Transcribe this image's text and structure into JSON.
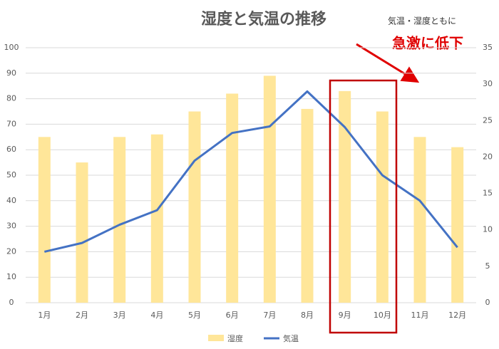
{
  "chart_data": {
    "type": "combo",
    "title": "湿度と気温の推移",
    "annotations": [
      "気温・湿度ともに",
      "急激に低下"
    ],
    "categories": [
      "1月",
      "2月",
      "3月",
      "4月",
      "5月",
      "6月",
      "7月",
      "8月",
      "9月",
      "10月",
      "11月",
      "12月"
    ],
    "series": [
      {
        "name": "湿度",
        "type": "bar",
        "color": "#ffe699",
        "values": [
          65,
          55,
          65,
          66,
          75,
          82,
          89,
          76,
          83,
          75,
          65,
          61
        ]
      },
      {
        "name": "気温",
        "type": "line",
        "axis": "y2",
        "color": "#4472c4",
        "values": [
          7.0,
          8.2,
          10.7,
          12.7,
          19.5,
          23.3,
          24.2,
          29.0,
          24.1,
          17.5,
          14.0,
          7.6
        ]
      }
    ],
    "ylim": [
      0,
      100
    ],
    "yticks": [
      0,
      10,
      20,
      30,
      40,
      50,
      60,
      70,
      80,
      90,
      100
    ],
    "y2lim": [
      0,
      35
    ],
    "y2ticks": [
      0,
      5,
      10,
      15,
      20,
      25,
      30,
      35
    ],
    "grid": true,
    "legend": "bottom"
  }
}
